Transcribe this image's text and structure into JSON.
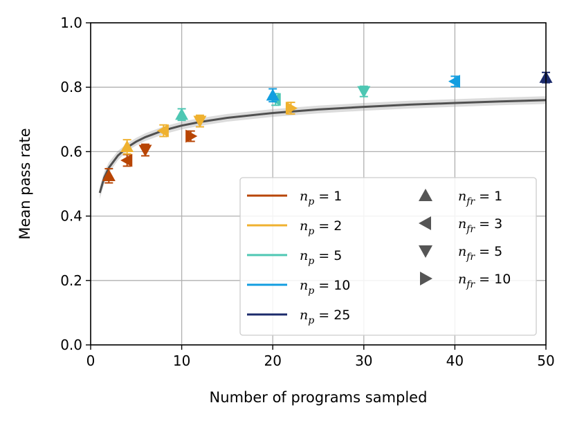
{
  "chart_data": {
    "type": "scatter",
    "title": "",
    "xlabel": "Number of programs sampled",
    "ylabel": "Mean pass rate",
    "xlim": [
      0,
      50
    ],
    "ylim": [
      0.0,
      1.0
    ],
    "xticks": [
      "0",
      "10",
      "20",
      "30",
      "40",
      "50"
    ],
    "yticks": [
      "0.0",
      "0.2",
      "0.4",
      "0.6",
      "0.8",
      "1.0"
    ],
    "grid": true,
    "legend_position": "lower-right",
    "series_colors": [
      {
        "label": "n_p = 1",
        "color": "#b84504"
      },
      {
        "label": "n_p = 2",
        "color": "#efb12f"
      },
      {
        "label": "n_p = 5",
        "color": "#4ec7b3"
      },
      {
        "label": "n_p = 10",
        "color": "#139ee0"
      },
      {
        "label": "n_p = 25",
        "color": "#1b2a6b"
      }
    ],
    "markers": [
      {
        "label": "n_fr = 1",
        "shape": "triangle-up"
      },
      {
        "label": "n_fr = 3",
        "shape": "triangle-left"
      },
      {
        "label": "n_fr = 5",
        "shape": "triangle-down"
      },
      {
        "label": "n_fr = 10",
        "shape": "triangle-right"
      }
    ],
    "legend_np": [
      {
        "sub": "p",
        "value": "1"
      },
      {
        "sub": "p",
        "value": "2"
      },
      {
        "sub": "p",
        "value": "5"
      },
      {
        "sub": "p",
        "value": "10"
      },
      {
        "sub": "p",
        "value": "25"
      }
    ],
    "legend_nfr": [
      {
        "sub": "fr",
        "value": "1"
      },
      {
        "sub": "fr",
        "value": "3"
      },
      {
        "sub": "fr",
        "value": "5"
      },
      {
        "sub": "fr",
        "value": "10"
      }
    ],
    "points": [
      {
        "x": 2,
        "y": 0.525,
        "err": 0.022,
        "np": 1,
        "nfr": 1
      },
      {
        "x": 4,
        "y": 0.573,
        "err": 0.018,
        "np": 1,
        "nfr": 3
      },
      {
        "x": 6,
        "y": 0.605,
        "err": 0.018,
        "np": 1,
        "nfr": 5
      },
      {
        "x": 11,
        "y": 0.648,
        "err": 0.016,
        "np": 1,
        "nfr": 10
      },
      {
        "x": 4,
        "y": 0.615,
        "err": 0.022,
        "np": 2,
        "nfr": 1
      },
      {
        "x": 8,
        "y": 0.665,
        "err": 0.018,
        "np": 2,
        "nfr": 3
      },
      {
        "x": 12,
        "y": 0.695,
        "err": 0.018,
        "np": 2,
        "nfr": 5
      },
      {
        "x": 22,
        "y": 0.735,
        "err": 0.018,
        "np": 2,
        "nfr": 10
      },
      {
        "x": 10,
        "y": 0.715,
        "err": 0.018,
        "np": 5,
        "nfr": 1
      },
      {
        "x": 20.3,
        "y": 0.762,
        "err": 0.018,
        "np": 5,
        "nfr": 3
      },
      {
        "x": 30,
        "y": 0.787,
        "err": 0.016,
        "np": 5,
        "nfr": 5
      },
      {
        "x": 20,
        "y": 0.775,
        "err": 0.02,
        "np": 10,
        "nfr": 1
      },
      {
        "x": 40,
        "y": 0.818,
        "err": 0.016,
        "np": 10,
        "nfr": 3
      },
      {
        "x": 50,
        "y": 0.83,
        "err": 0.016,
        "np": 25,
        "nfr": 1
      }
    ],
    "fit_curve": {
      "description": "power-law fit with shaded confidence band",
      "x": [
        1,
        1.5,
        2,
        3,
        4,
        5,
        6,
        8,
        10,
        12,
        15,
        20,
        25,
        30,
        35,
        40,
        45,
        50
      ],
      "y": [
        0.472,
        0.52,
        0.55,
        0.588,
        0.613,
        0.631,
        0.645,
        0.666,
        0.681,
        0.692,
        0.705,
        0.72,
        0.731,
        0.739,
        0.746,
        0.751,
        0.756,
        0.76
      ],
      "band": 0.012,
      "color": "#505050"
    }
  }
}
